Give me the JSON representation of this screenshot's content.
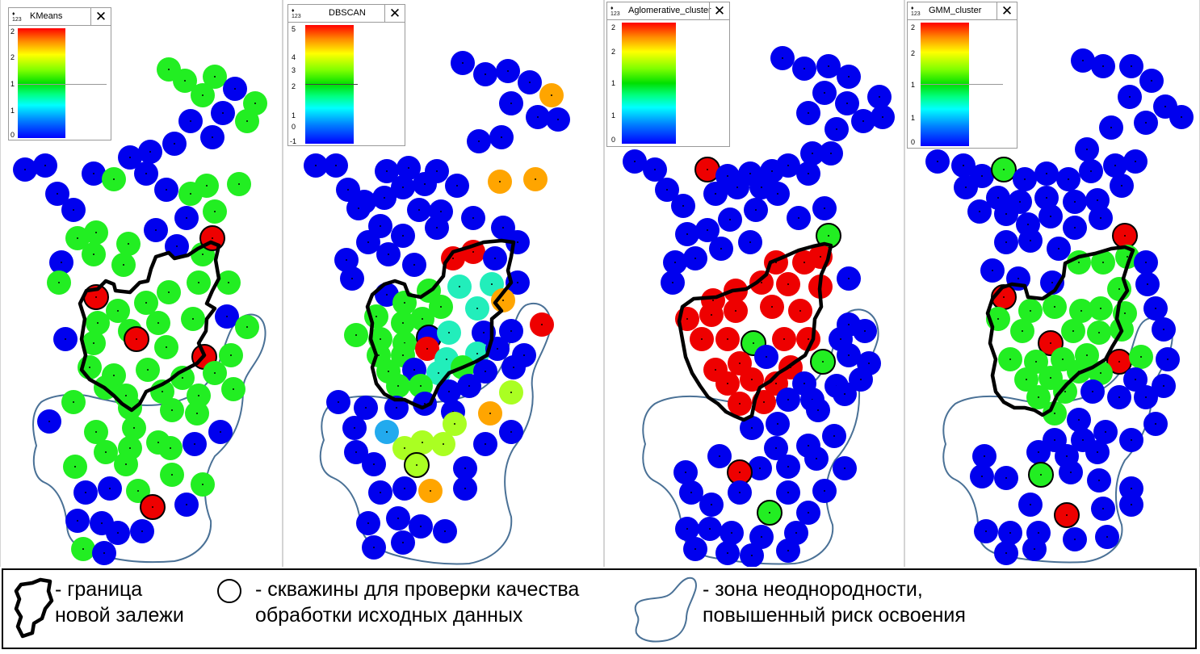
{
  "panels": [
    {
      "title": "KMeans",
      "close": "✕",
      "ticks": [
        "2",
        "2",
        "1",
        "1",
        "0"
      ]
    },
    {
      "title": "DBSCAN",
      "close": "✕",
      "ticks": [
        "5",
        "4",
        "3",
        "2",
        "1",
        "0",
        "-1"
      ]
    },
    {
      "title": "Aglomerative_cluster",
      "close": "✕",
      "ticks": [
        "2",
        "2",
        "1",
        "1",
        "0"
      ]
    },
    {
      "title": "GMM_cluster",
      "close": "✕",
      "ticks": [
        "2",
        "2",
        "1",
        "1",
        "0"
      ]
    }
  ],
  "legend": {
    "boundary_line1": "- граница",
    "boundary_line2": "новой залежи",
    "wells_line1": "- скважины для проверки качества",
    "wells_line2": "обработки исходных данных",
    "zone_line1": "- зона неоднородности,",
    "zone_line2": "повышенный риск освоения"
  },
  "colors": {
    "blue": "#0000ee",
    "green": "#22ee22",
    "red": "#ee0000",
    "orange": "#ffa500",
    "lime": "#aaff22",
    "cyan": "#22eebb",
    "skyblue": "#22aaee",
    "zone_stroke": "#4a7196"
  }
}
